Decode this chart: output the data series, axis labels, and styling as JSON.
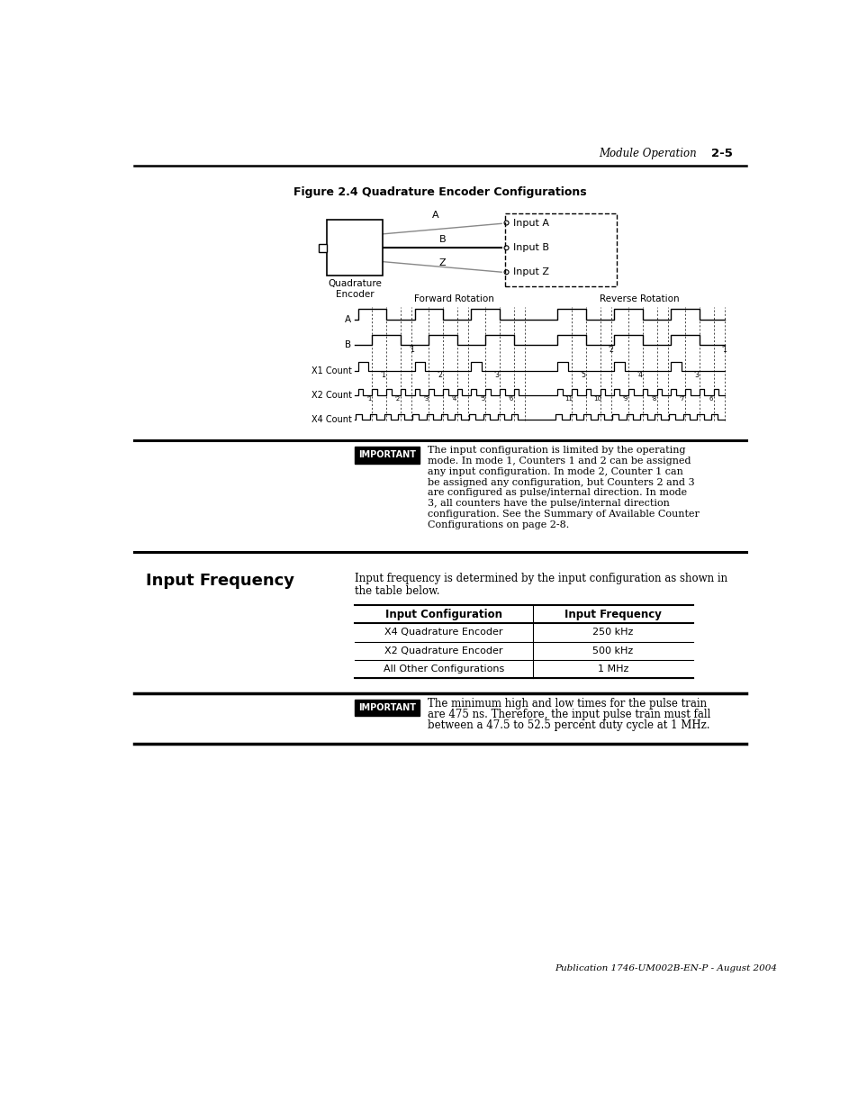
{
  "page_width": 9.54,
  "page_height": 12.35,
  "bg_color": "#ffffff",
  "header_text": "Module Operation",
  "header_page": "2-5",
  "figure_title": "Figure 2.4 Quadrature Encoder Configurations",
  "encoder_label": "Quadrature\nEncoder",
  "forward_label": "Forward Rotation",
  "reverse_label": "Reverse Rotation",
  "important1_lines": [
    "The input configuration is limited by the operating",
    "mode. In mode 1, Counters 1 and 2 can be assigned",
    "any input configuration. In mode 2, Counter 1 can",
    "be assigned any configuration, but Counters 2 and 3",
    "are configured as pulse/internal direction. In mode",
    "3, all counters have the pulse/internal direction",
    "configuration. See the Summary of Available Counter",
    "Configurations on page 2-8."
  ],
  "section_title": "Input Frequency",
  "section_intro_line1": "Input frequency is determined by the input configuration as shown in",
  "section_intro_line2": "the table below.",
  "table_headers": [
    "Input Configuration",
    "Input Frequency"
  ],
  "table_rows": [
    [
      "X4 Quadrature Encoder",
      "250 kHz"
    ],
    [
      "X2 Quadrature Encoder",
      "500 kHz"
    ],
    [
      "All Other Configurations",
      "1 MHz"
    ]
  ],
  "important2_lines": [
    "The minimum high and low times for the pulse train",
    "are 475 ns. Therefore, the input pulse train must fall",
    "between a 47.5 to 52.5 percent duty cycle at 1 MHz."
  ],
  "footer_text": "Publication 1746-UM002B-EN-P - August 2004"
}
